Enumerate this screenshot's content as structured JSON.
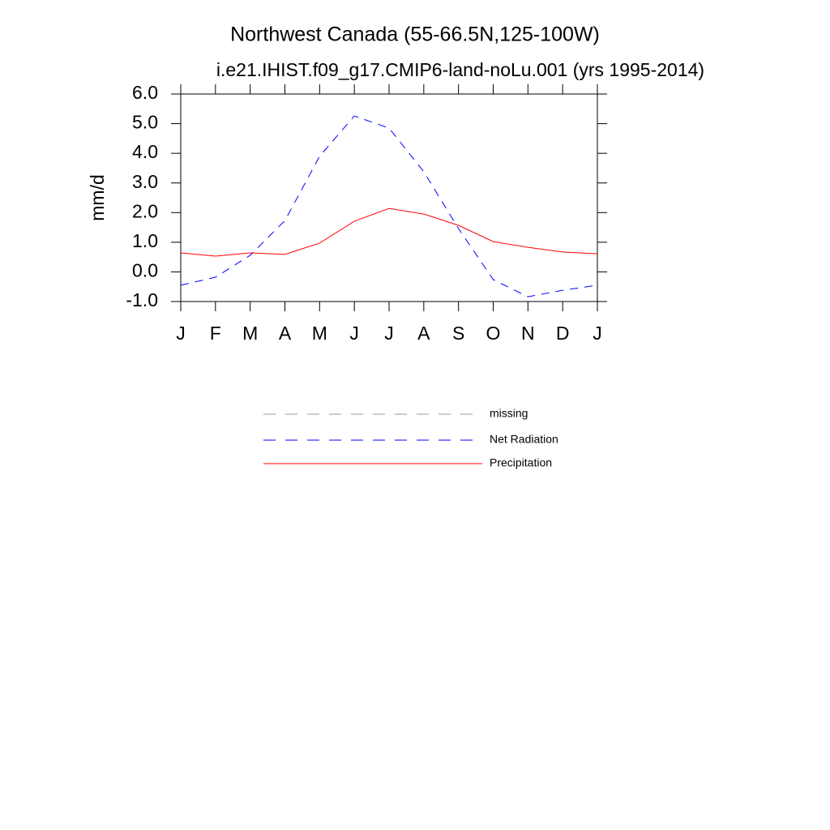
{
  "chart_data": {
    "type": "line",
    "title": "Northwest Canada (55-66.5N,125-100W)",
    "subtitle": "i.e21.IHIST.f09_g17.CMIP6-land-noLu.001 (yrs 1995-2014)",
    "y_label": "mm/d",
    "categories": [
      "J",
      "F",
      "M",
      "A",
      "M",
      "J",
      "J",
      "A",
      "S",
      "O",
      "N",
      "D",
      "J"
    ],
    "ylim": [
      -1.0,
      6.0
    ],
    "yticks": [
      {
        "value": 6,
        "label": "6.0"
      },
      {
        "value": 5,
        "label": "5.0"
      },
      {
        "value": 4,
        "label": "4.0"
      },
      {
        "value": 3,
        "label": "3.0"
      },
      {
        "value": 2,
        "label": "2.0"
      },
      {
        "value": 1,
        "label": "1.0"
      },
      {
        "value": 0,
        "label": "0.0"
      },
      {
        "value": -1,
        "label": "-1.0"
      }
    ],
    "series": [
      {
        "name": "missing",
        "color": "#999999",
        "dashed": true,
        "values": [
          null,
          null,
          null,
          null,
          null,
          null,
          null,
          null,
          null,
          null,
          null,
          null,
          null
        ]
      },
      {
        "name": "Net Radiation",
        "color": "#0000ff",
        "dashed": true,
        "values": [
          -0.45,
          -0.18,
          0.56,
          1.73,
          3.9,
          5.26,
          4.85,
          3.38,
          1.46,
          -0.26,
          -0.84,
          -0.62,
          -0.45
        ]
      },
      {
        "name": "Precipitation",
        "color": "#ff0000",
        "dashed": false,
        "values": [
          0.64,
          0.53,
          0.64,
          0.59,
          0.97,
          1.71,
          2.14,
          1.95,
          1.57,
          1.02,
          0.83,
          0.67,
          0.61
        ]
      }
    ]
  }
}
